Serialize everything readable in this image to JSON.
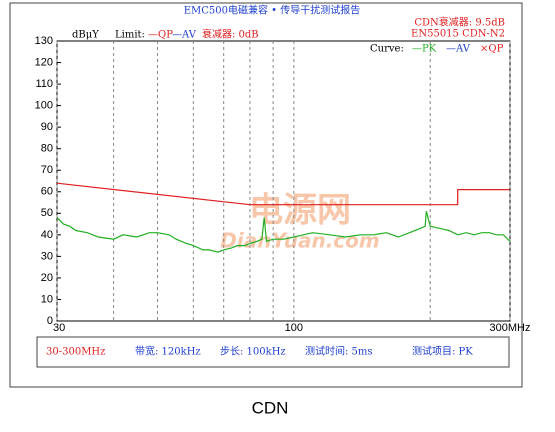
{
  "chart_data": {
    "type": "line",
    "title": "EMC500电磁兼容 • 传导干扰测试报告",
    "y_unit": "dBμY",
    "limit_label": "Limit:",
    "limit_legend": [
      {
        "text": "—QP",
        "color": "#e02020"
      },
      {
        "text": "—AV",
        "color": "#2040d0"
      }
    ],
    "attenuator": "衰减器: 0dB",
    "cdn_attenuator": "CDN衰减器: 9.5dB",
    "standard": "EN55015 CDN-N2",
    "curve_label": "Curve:",
    "curve_legend": [
      {
        "text": "—PK",
        "color": "#20b020"
      },
      {
        "text": "—AV",
        "color": "#2040d0"
      },
      {
        "text": "×QP",
        "color": "#e02020"
      }
    ],
    "xscale": "log",
    "xlim": [
      30,
      300
    ],
    "xticks": [
      30,
      100,
      {
        "value": 300,
        "label": "300MHz"
      }
    ],
    "xgrid": [
      40,
      50,
      60,
      70,
      80,
      90,
      200
    ],
    "ylim": [
      0,
      130
    ],
    "yticks": [
      0,
      10,
      20,
      30,
      40,
      50,
      60,
      70,
      80,
      90,
      100,
      110,
      120,
      130
    ],
    "series": [
      {
        "name": "QP limit",
        "color": "#e02020",
        "x": [
          30,
          80,
          230,
          230,
          300
        ],
        "values": [
          64,
          54,
          54,
          61,
          61
        ]
      },
      {
        "name": "PK",
        "color": "#20b020",
        "x": [
          30,
          31,
          32,
          33,
          35,
          37,
          40,
          42,
          45,
          48,
          50,
          53,
          55,
          58,
          60,
          63,
          65,
          68,
          70,
          73,
          75,
          78,
          80,
          83,
          85,
          86,
          87,
          90,
          95,
          100,
          105,
          110,
          120,
          130,
          140,
          150,
          160,
          170,
          180,
          190,
          195,
          196,
          200,
          210,
          220,
          230,
          240,
          250,
          260,
          270,
          280,
          290,
          300
        ],
        "values": [
          48,
          45,
          44,
          42,
          41,
          39,
          38,
          40,
          39,
          41,
          41,
          40,
          38,
          36,
          35,
          33,
          33,
          32,
          33,
          34,
          35,
          35,
          36,
          37,
          38,
          48,
          37,
          38,
          38,
          39,
          40,
          41,
          40,
          39,
          40,
          40,
          41,
          39,
          41,
          43,
          44,
          51,
          44,
          43,
          42,
          40,
          41,
          40,
          41,
          41,
          40,
          40,
          37
        ]
      }
    ],
    "info": [
      "30-300MHz",
      "带宽: 120kHz",
      "步长: 100kHz",
      "测试时间: 5ms",
      "测试项目: PK"
    ],
    "watermark": [
      "电源网",
      "DianYuan.com"
    ],
    "caption": "CDN"
  }
}
